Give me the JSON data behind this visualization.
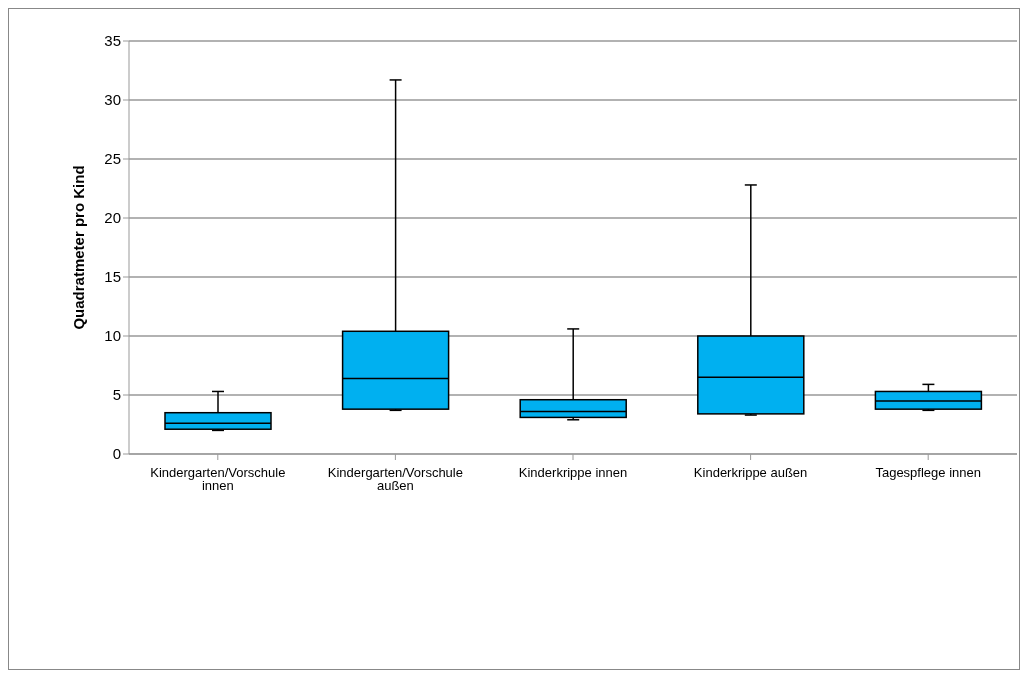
{
  "chart_data": {
    "type": "box",
    "ylabel": "Quadratmeter pro Kind",
    "categories": [
      "Kindergarten/Vorschule innen",
      "Kindergarten/Vorschule außen",
      "Kinderkrippe innen",
      "Kinderkrippe außen",
      "Tagespflege innen"
    ],
    "color": "#00b0f0",
    "boxes": [
      {
        "low": 2.0,
        "q1": 2.1,
        "median": 2.6,
        "q3": 3.5,
        "high": 5.3
      },
      {
        "low": 3.7,
        "q1": 3.8,
        "median": 6.4,
        "q3": 10.4,
        "high": 31.7
      },
      {
        "low": 2.9,
        "q1": 3.1,
        "median": 3.6,
        "q3": 4.6,
        "high": 10.6
      },
      {
        "low": 3.3,
        "q1": 3.4,
        "median": 6.5,
        "q3": 10.0,
        "high": 22.8
      },
      {
        "low": 3.7,
        "q1": 3.8,
        "median": 4.5,
        "q3": 5.3,
        "high": 5.9
      }
    ],
    "ylim": [
      0,
      35
    ],
    "yticks": [
      0,
      5,
      10,
      15,
      20,
      25,
      30,
      35
    ],
    "grid": "y"
  }
}
